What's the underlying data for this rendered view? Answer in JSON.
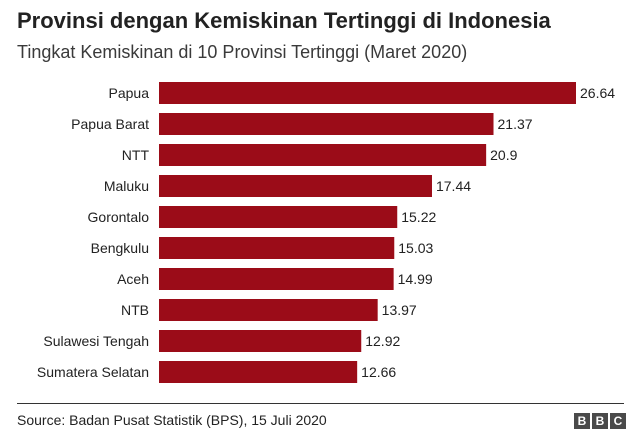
{
  "chart_data": {
    "type": "bar",
    "orientation": "horizontal",
    "title": "Provinsi dengan Kemiskinan Tertinggi di Indonesia",
    "subtitle": "Tingkat Kemiskinan di 10 Provinsi Tertinggi (Maret 2020)",
    "categories": [
      "Papua",
      "Papua Barat",
      "NTT",
      "Maluku",
      "Gorontalo",
      "Bengkulu",
      "Aceh",
      "NTB",
      "Sulawesi Tengah",
      "Sumatera Selatan"
    ],
    "values": [
      26.64,
      21.37,
      20.9,
      17.44,
      15.22,
      15.03,
      14.99,
      13.97,
      12.92,
      12.66
    ],
    "value_labels": [
      "26.64",
      "21.37",
      "20.9",
      "17.44",
      "15.22",
      "15.03",
      "14.99",
      "13.97",
      "12.92",
      "12.66"
    ],
    "xlim": [
      0,
      26.64
    ],
    "grid": false,
    "legend": "none",
    "bar_color": "#9b0c18"
  },
  "footer": {
    "source": "Source: Badan Pusat Statistik (BPS), 15 Juli 2020",
    "logo_letters": [
      "B",
      "B",
      "C"
    ]
  }
}
